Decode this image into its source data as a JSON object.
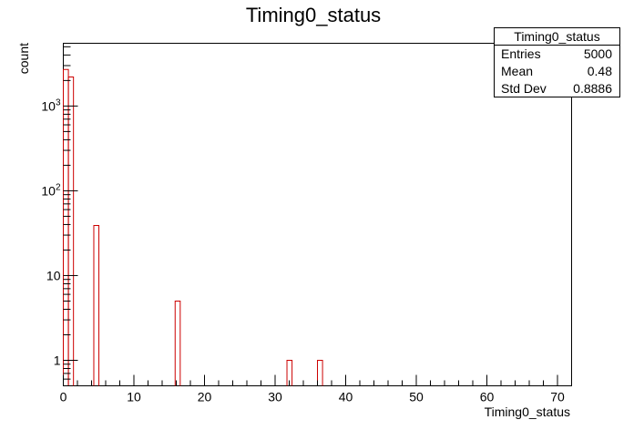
{
  "chart_data": {
    "type": "bar",
    "title": "Timing0_status",
    "xlabel": "Timing0_status",
    "ylabel": "count",
    "xlim": [
      0,
      72
    ],
    "ylim": [
      0.5,
      5500
    ],
    "yscale": "log",
    "bin_width": 0.72,
    "x_ticks": [
      {
        "value": 0,
        "label": "0"
      },
      {
        "value": 10,
        "label": "10"
      },
      {
        "value": 20,
        "label": "20"
      },
      {
        "value": 30,
        "label": "30"
      },
      {
        "value": 40,
        "label": "40"
      },
      {
        "value": 50,
        "label": "50"
      },
      {
        "value": 60,
        "label": "60"
      },
      {
        "value": 70,
        "label": "70"
      }
    ],
    "y_ticks": [
      {
        "value": 1,
        "label": "1"
      },
      {
        "value": 10,
        "label": "10"
      },
      {
        "value": 100,
        "label": "10",
        "exp": "2"
      },
      {
        "value": 1000,
        "label": "10",
        "exp": "3"
      }
    ],
    "series": [
      {
        "line_color": "#cc0000",
        "bins": [
          {
            "x": 0,
            "value": 2700
          },
          {
            "x": 0.72,
            "value": 2200
          },
          {
            "x": 4.32,
            "value": 39
          },
          {
            "x": 15.84,
            "value": 5
          },
          {
            "x": 31.68,
            "value": 1
          },
          {
            "x": 36.0,
            "value": 1
          }
        ]
      }
    ]
  },
  "stats": {
    "title": "Timing0_status",
    "rows": [
      {
        "label": "Entries",
        "value": "5000"
      },
      {
        "label": "Mean",
        "value": "0.48"
      },
      {
        "label": "Std Dev",
        "value": "0.8886"
      }
    ]
  }
}
